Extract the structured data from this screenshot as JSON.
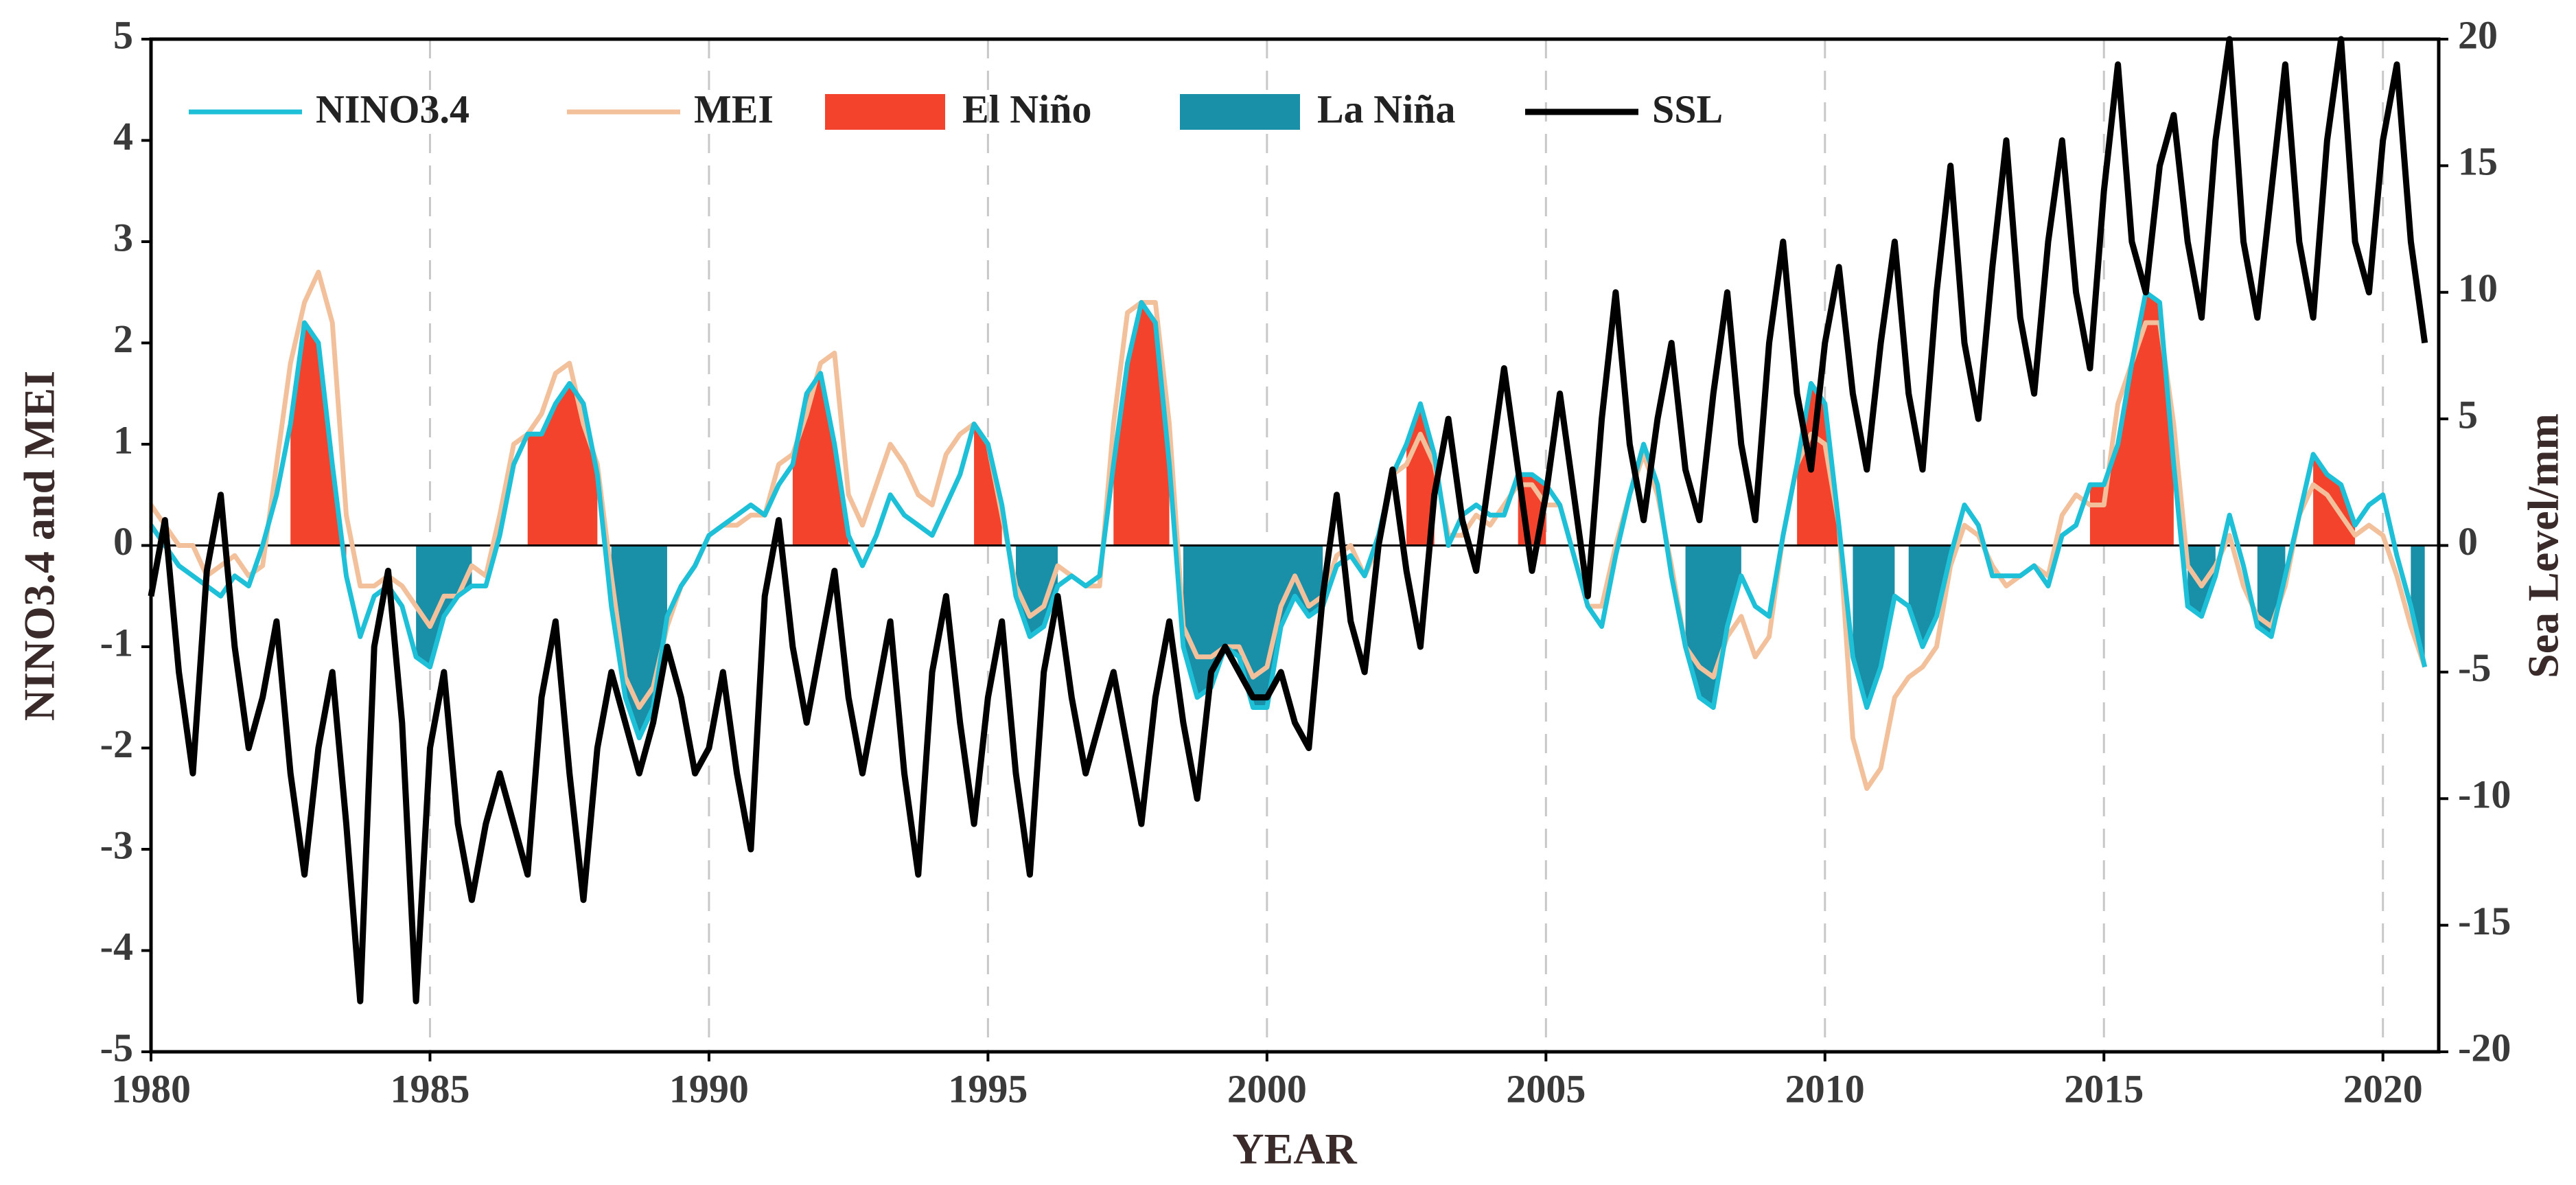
{
  "chart_data": {
    "type": "line",
    "xlabel": "YEAR",
    "ylabel": "NINO3.4 and MEI",
    "y2label": "Sea Level/mm",
    "xlim": [
      1980,
      2021
    ],
    "xticks": [
      1980,
      1985,
      1990,
      1995,
      2000,
      2005,
      2010,
      2015,
      2020
    ],
    "ylim": [
      -5,
      5
    ],
    "yticks": [
      -5,
      -4,
      -3,
      -2,
      -1,
      0,
      1,
      2,
      3,
      4,
      5
    ],
    "y2lim": [
      -20,
      20
    ],
    "y2ticks": [
      -20,
      -15,
      -10,
      -5,
      0,
      5,
      10,
      15,
      20
    ],
    "grid": "x",
    "legend": "upper left",
    "x": [
      1980,
      1980.25,
      1980.5,
      1980.75,
      1981,
      1981.25,
      1981.5,
      1981.75,
      1982,
      1982.25,
      1982.5,
      1982.75,
      1983,
      1983.25,
      1983.5,
      1983.75,
      1984,
      1984.25,
      1984.5,
      1984.75,
      1985,
      1985.25,
      1985.5,
      1985.75,
      1986,
      1986.25,
      1986.5,
      1986.75,
      1987,
      1987.25,
      1987.5,
      1987.75,
      1988,
      1988.25,
      1988.5,
      1988.75,
      1989,
      1989.25,
      1989.5,
      1989.75,
      1990,
      1990.25,
      1990.5,
      1990.75,
      1991,
      1991.25,
      1991.5,
      1991.75,
      1992,
      1992.25,
      1992.5,
      1992.75,
      1993,
      1993.25,
      1993.5,
      1993.75,
      1994,
      1994.25,
      1994.5,
      1994.75,
      1995,
      1995.25,
      1995.5,
      1995.75,
      1996,
      1996.25,
      1996.5,
      1996.75,
      1997,
      1997.25,
      1997.5,
      1997.75,
      1998,
      1998.25,
      1998.5,
      1998.75,
      1999,
      1999.25,
      1999.5,
      1999.75,
      2000,
      2000.25,
      2000.5,
      2000.75,
      2001,
      2001.25,
      2001.5,
      2001.75,
      2002,
      2002.25,
      2002.5,
      2002.75,
      2003,
      2003.25,
      2003.5,
      2003.75,
      2004,
      2004.25,
      2004.5,
      2004.75,
      2005,
      2005.25,
      2005.5,
      2005.75,
      2006,
      2006.25,
      2006.5,
      2006.75,
      2007,
      2007.25,
      2007.5,
      2007.75,
      2008,
      2008.25,
      2008.5,
      2008.75,
      2009,
      2009.25,
      2009.5,
      2009.75,
      2010,
      2010.25,
      2010.5,
      2010.75,
      2011,
      2011.25,
      2011.5,
      2011.75,
      2012,
      2012.25,
      2012.5,
      2012.75,
      2013,
      2013.25,
      2013.5,
      2013.75,
      2014,
      2014.25,
      2014.5,
      2014.75,
      2015,
      2015.25,
      2015.5,
      2015.75,
      2016,
      2016.25,
      2016.5,
      2016.75,
      2017,
      2017.25,
      2017.5,
      2017.75,
      2018,
      2018.25,
      2018.5,
      2018.75,
      2019,
      2019.25,
      2019.5,
      2019.75,
      2020,
      2020.25,
      2020.5,
      2020.75
    ],
    "series": [
      {
        "name": "NINO3.4",
        "type": "line",
        "color": "#1ec0d8",
        "values": [
          0.2,
          0.0,
          -0.2,
          -0.3,
          -0.4,
          -0.5,
          -0.3,
          -0.4,
          0.0,
          0.5,
          1.2,
          2.2,
          2.0,
          0.8,
          -0.3,
          -0.9,
          -0.5,
          -0.4,
          -0.6,
          -1.1,
          -1.2,
          -0.7,
          -0.5,
          -0.4,
          -0.4,
          0.1,
          0.8,
          1.1,
          1.1,
          1.4,
          1.6,
          1.4,
          0.7,
          -0.6,
          -1.5,
          -1.9,
          -1.6,
          -0.7,
          -0.4,
          -0.2,
          0.1,
          0.2,
          0.3,
          0.4,
          0.3,
          0.6,
          0.8,
          1.5,
          1.7,
          1.0,
          0.1,
          -0.2,
          0.1,
          0.5,
          0.3,
          0.2,
          0.1,
          0.4,
          0.7,
          1.2,
          1.0,
          0.4,
          -0.5,
          -0.9,
          -0.8,
          -0.4,
          -0.3,
          -0.4,
          -0.3,
          0.8,
          1.8,
          2.4,
          2.2,
          0.8,
          -1.0,
          -1.5,
          -1.4,
          -1.0,
          -1.1,
          -1.6,
          -1.6,
          -0.8,
          -0.5,
          -0.7,
          -0.6,
          -0.2,
          -0.1,
          -0.3,
          0.1,
          0.7,
          1.0,
          1.4,
          0.9,
          0.0,
          0.3,
          0.4,
          0.3,
          0.3,
          0.7,
          0.7,
          0.6,
          0.4,
          -0.1,
          -0.6,
          -0.8,
          -0.1,
          0.5,
          1.0,
          0.6,
          -0.3,
          -1.0,
          -1.5,
          -1.6,
          -0.8,
          -0.3,
          -0.6,
          -0.7,
          0.1,
          0.8,
          1.6,
          1.4,
          0.2,
          -1.1,
          -1.6,
          -1.2,
          -0.5,
          -0.6,
          -1.0,
          -0.7,
          -0.1,
          0.4,
          0.2,
          -0.3,
          -0.3,
          -0.3,
          -0.2,
          -0.4,
          0.1,
          0.2,
          0.6,
          0.6,
          1.0,
          1.8,
          2.5,
          2.4,
          0.8,
          -0.6,
          -0.7,
          -0.3,
          0.3,
          -0.2,
          -0.8,
          -0.9,
          -0.3,
          0.3,
          0.9,
          0.7,
          0.6,
          0.2,
          0.4,
          0.5,
          -0.1,
          -0.6,
          -1.2
        ]
      },
      {
        "name": "MEI",
        "type": "line",
        "color": "#f2c09b",
        "values": [
          0.4,
          0.2,
          0.0,
          0.0,
          -0.3,
          -0.2,
          -0.1,
          -0.3,
          -0.2,
          0.8,
          1.8,
          2.4,
          2.7,
          2.2,
          0.3,
          -0.4,
          -0.4,
          -0.3,
          -0.4,
          -0.6,
          -0.8,
          -0.5,
          -0.5,
          -0.2,
          -0.3,
          0.3,
          1.0,
          1.1,
          1.3,
          1.7,
          1.8,
          1.2,
          0.8,
          -0.3,
          -1.3,
          -1.6,
          -1.4,
          -0.8,
          -0.4,
          -0.2,
          0.1,
          0.2,
          0.2,
          0.3,
          0.3,
          0.8,
          0.9,
          1.3,
          1.8,
          1.9,
          0.5,
          0.2,
          0.6,
          1.0,
          0.8,
          0.5,
          0.4,
          0.9,
          1.1,
          1.2,
          1.0,
          0.3,
          -0.4,
          -0.7,
          -0.6,
          -0.2,
          -0.3,
          -0.4,
          -0.4,
          1.2,
          2.3,
          2.4,
          2.4,
          1.2,
          -0.8,
          -1.1,
          -1.1,
          -1.0,
          -1.0,
          -1.3,
          -1.2,
          -0.6,
          -0.3,
          -0.6,
          -0.5,
          -0.1,
          0.0,
          -0.3,
          0.0,
          0.7,
          0.8,
          1.1,
          0.8,
          0.1,
          0.1,
          0.3,
          0.2,
          0.4,
          0.6,
          0.6,
          0.4,
          0.4,
          -0.1,
          -0.6,
          -0.6,
          0.0,
          0.5,
          0.9,
          0.5,
          -0.2,
          -1.0,
          -1.2,
          -1.3,
          -0.9,
          -0.7,
          -1.1,
          -0.9,
          0.1,
          0.8,
          1.1,
          1.0,
          0.2,
          -1.9,
          -2.4,
          -2.2,
          -1.5,
          -1.3,
          -1.2,
          -1.0,
          -0.2,
          0.2,
          0.1,
          -0.2,
          -0.4,
          -0.3,
          -0.2,
          -0.3,
          0.3,
          0.5,
          0.4,
          0.4,
          1.4,
          1.8,
          2.2,
          2.2,
          1.2,
          -0.2,
          -0.4,
          -0.2,
          0.1,
          -0.4,
          -0.7,
          -0.8,
          -0.4,
          0.3,
          0.6,
          0.5,
          0.3,
          0.1,
          0.2,
          0.1,
          -0.3,
          -0.8,
          -1.2
        ]
      },
      {
        "name": "El Niño",
        "type": "area",
        "color": "#f4432c",
        "periods": [
          [
            1982.5,
            1983.5
          ],
          [
            1986.75,
            1988
          ],
          [
            1991.5,
            1992.5
          ],
          [
            1994.75,
            1995.25
          ],
          [
            1997.25,
            1998.25
          ],
          [
            2002.5,
            2003
          ],
          [
            2004.5,
            2005
          ],
          [
            2009.5,
            2010.25
          ],
          [
            2014.75,
            2016.25
          ],
          [
            2018.75,
            2019.5
          ]
        ]
      },
      {
        "name": "La Niña",
        "type": "area",
        "color": "#1a8fa8",
        "periods": [
          [
            1984.75,
            1985.75
          ],
          [
            1988.25,
            1989.25
          ],
          [
            1995.5,
            1996.25
          ],
          [
            1998.5,
            2001
          ],
          [
            2007.5,
            2008.5
          ],
          [
            2010.5,
            2011.25
          ],
          [
            2011.5,
            2012.25
          ],
          [
            2016.5,
            2017
          ],
          [
            2017.75,
            2018.25
          ],
          [
            2020.5,
            2020.75
          ]
        ]
      },
      {
        "name": "SSL",
        "type": "line",
        "axis": "y2",
        "color": "#000000",
        "values": [
          -2,
          1,
          -5,
          -9,
          -1,
          2,
          -4,
          -8,
          -6,
          -3,
          -9,
          -13,
          -8,
          -5,
          -11,
          -18,
          -4,
          -1,
          -7,
          -18,
          -8,
          -5,
          -11,
          -14,
          -11,
          -9,
          -11,
          -13,
          -6,
          -3,
          -9,
          -14,
          -8,
          -5,
          -7,
          -9,
          -7,
          -4,
          -6,
          -9,
          -8,
          -5,
          -9,
          -12,
          -2,
          1,
          -4,
          -7,
          -4,
          -1,
          -6,
          -9,
          -6,
          -3,
          -9,
          -13,
          -5,
          -2,
          -7,
          -11,
          -6,
          -3,
          -9,
          -13,
          -5,
          -2,
          -6,
          -9,
          -7,
          -5,
          -8,
          -11,
          -6,
          -3,
          -7,
          -10,
          -5,
          -4,
          -5,
          -6,
          -6,
          -5,
          -7,
          -8,
          -2,
          2,
          -3,
          -5,
          0,
          3,
          -1,
          -4,
          2,
          5,
          1,
          -1,
          3,
          7,
          3,
          -1,
          2,
          6,
          2,
          -2,
          5,
          10,
          4,
          1,
          5,
          8,
          3,
          1,
          6,
          10,
          4,
          1,
          8,
          12,
          6,
          3,
          8,
          11,
          6,
          3,
          8,
          12,
          6,
          3,
          10,
          15,
          8,
          5,
          11,
          16,
          9,
          6,
          12,
          16,
          10,
          7,
          14,
          19,
          12,
          10,
          15,
          17,
          12,
          9,
          16,
          20,
          12,
          9,
          14,
          19,
          12,
          9,
          16,
          20,
          12,
          10,
          16,
          19,
          12,
          8
        ]
      }
    ]
  }
}
